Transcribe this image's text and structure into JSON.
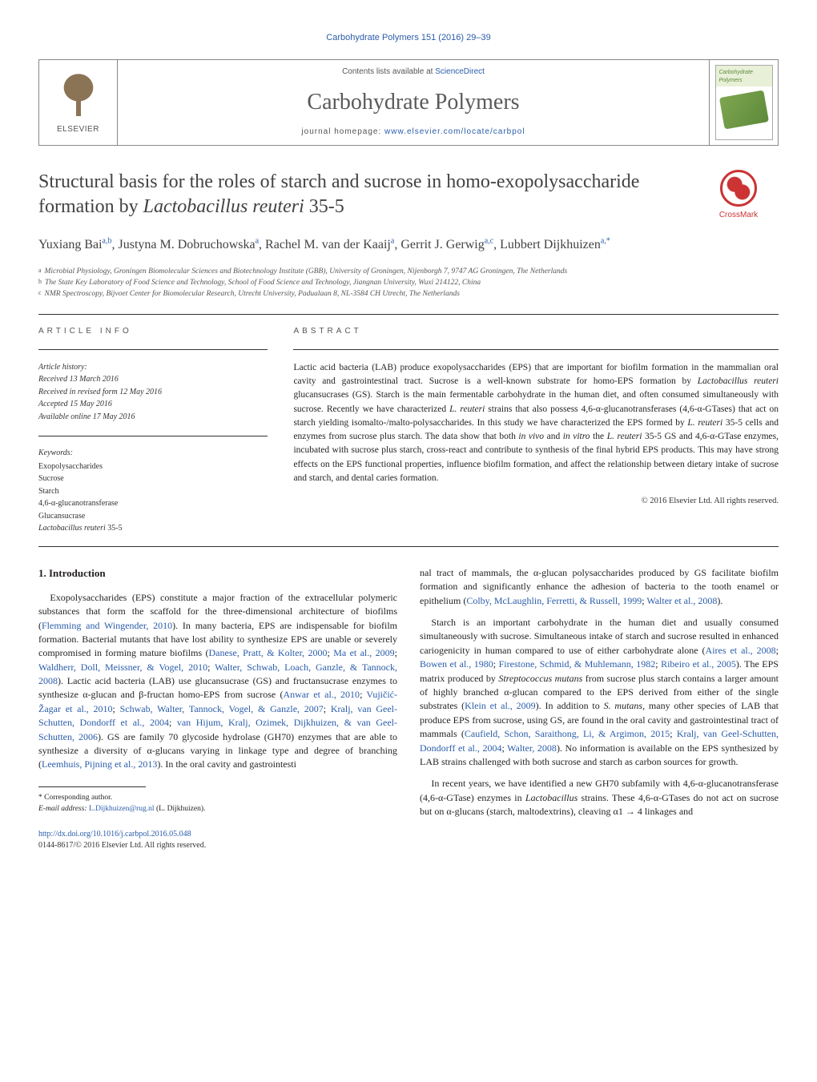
{
  "journal_ref": {
    "text": "Carbohydrate Polymers 151 (2016) 29–39",
    "link_text": "Carbohydrate Polymers 151 (2016) 29–39"
  },
  "header": {
    "elsevier": "ELSEVIER",
    "contents_prefix": "Contents lists available at ",
    "contents_link": "ScienceDirect",
    "journal_title": "Carbohydrate Polymers",
    "homepage_prefix": "journal homepage: ",
    "homepage_link": "www.elsevier.com/locate/carbpol",
    "cover_label": "Carbohydrate Polymers"
  },
  "crossmark": "CrossMark",
  "title_html": "Structural basis for the roles of starch and sucrose in homo-exopolysaccharide formation by <em>Lactobacillus reuteri</em> 35-5",
  "authors_html": "Yuxiang Bai<sup>a,b</sup>, Justyna M. Dobruchowska<sup>a</sup>, Rachel M. van der Kaaij<sup>a</sup>, Gerrit J. Gerwig<sup>a,c</sup>, Lubbert Dijkhuizen<sup>a,</sup><sup>*</sup>",
  "affiliations": [
    {
      "sup": "a",
      "text": "Microbial Physiology, Groningen Biomolecular Sciences and Biotechnology Institute (GBB), University of Groningen, Nijenborgh 7, 9747 AG Groningen, The Netherlands"
    },
    {
      "sup": "b",
      "text": "The State Key Laboratory of Food Science and Technology, School of Food Science and Technology, Jiangnan University, Wuxi 214122, China"
    },
    {
      "sup": "c",
      "text": "NMR Spectroscopy, Bijvoet Center for Biomolecular Research, Utrecht University, Padualaan 8, NL-3584 CH Utrecht, The Netherlands"
    }
  ],
  "info": {
    "head": "ARTICLE INFO",
    "history_label": "Article history:",
    "history": [
      "Received 13 March 2016",
      "Received in revised form 12 May 2016",
      "Accepted 15 May 2016",
      "Available online 17 May 2016"
    ],
    "keywords_label": "Keywords:",
    "keywords": [
      "Exopolysaccharides",
      "Sucrose",
      "Starch",
      "4,6-α-glucanotransferase",
      "Glucansucrase",
      "Lactobacillus reuteri 35-5"
    ]
  },
  "abstract": {
    "head": "ABSTRACT",
    "text_html": "Lactic acid bacteria (LAB) produce exopolysaccharides (EPS) that are important for biofilm formation in the mammalian oral cavity and gastrointestinal tract. Sucrose is a well-known substrate for homo-EPS formation by <em>Lactobacillus reuteri</em> glucansucrases (GS). Starch is the main fermentable carbohydrate in the human diet, and often consumed simultaneously with sucrose. Recently we have characterized <em>L. reuteri</em> strains that also possess 4,6-α-glucanotransferases (4,6-α-GTases) that act on starch yielding isomalto-/malto-polysaccharides. In this study we have characterized the EPS formed by <em>L. reuteri</em> 35-5 cells and enzymes from sucrose plus starch. The data show that both <em>in vivo</em> and <em>in vitro</em> the <em>L. reuteri</em> 35-5 GS and 4,6-α-GTase enzymes, incubated with sucrose plus starch, cross-react and contribute to synthesis of the final hybrid EPS products. This may have strong effects on the EPS functional properties, influence biofilm formation, and affect the relationship between dietary intake of sucrose and starch, and dental caries formation.",
    "copyright": "© 2016 Elsevier Ltd. All rights reserved."
  },
  "body": {
    "heading": "1. Introduction",
    "p1_html": "Exopolysaccharides (EPS) constitute a major fraction of the extracellular polymeric substances that form the scaffold for the three-dimensional architecture of biofilms (<a href=\"#\">Flemming and Wingender, 2010</a>). In many bacteria, EPS are indispensable for biofilm formation. Bacterial mutants that have lost ability to synthesize EPS are unable or severely compromised in forming mature biofilms (<a href=\"#\">Danese, Pratt, &amp; Kolter, 2000</a>; <a href=\"#\">Ma et al., 2009</a>; <a href=\"#\">Waldherr, Doll, Meissner, &amp; Vogel, 2010</a>; <a href=\"#\">Walter, Schwab, Loach, Ganzle, &amp; Tannock, 2008</a>). Lactic acid bacteria (LAB) use glucansucrase (GS) and fructansucrase enzymes to synthesize α-glucan and β-fructan homo-EPS from sucrose (<a href=\"#\">Anwar et al., 2010</a>; <a href=\"#\">Vujičić-Žagar et al., 2010</a>; <a href=\"#\">Schwab, Walter, Tannock, Vogel, &amp; Ganzle, 2007</a>; <a href=\"#\">Kralj, van Geel-Schutten, Dondorff et al., 2004</a>; <a href=\"#\">van Hijum, Kralj, Ozimek, Dijkhuizen, &amp; van Geel-Schutten, 2006</a>). GS are family 70 glycoside hydrolase (GH70) enzymes that are able to synthesize a diversity of α-glucans varying in linkage type and degree of branching (<a href=\"#\">Leemhuis, Pijning et al., 2013</a>). In the oral cavity and gastrointesti",
    "p1b_html": "nal tract of mammals, the α-glucan polysaccharides produced by GS facilitate biofilm formation and significantly enhance the adhesion of bacteria to the tooth enamel or epithelium (<a href=\"#\">Colby, McLaughlin, Ferretti, &amp; Russell, 1999</a>; <a href=\"#\">Walter et al., 2008</a>).",
    "p2_html": "Starch is an important carbohydrate in the human diet and usually consumed simultaneously with sucrose. Simultaneous intake of starch and sucrose resulted in enhanced cariogenicity in human compared to use of either carbohydrate alone (<a href=\"#\">Aires et al., 2008</a>; <a href=\"#\">Bowen et al., 1980</a>; <a href=\"#\">Firestone, Schmid, &amp; Muhlemann, 1982</a>; <a href=\"#\">Ribeiro et al., 2005</a>). The EPS matrix produced by <em>Streptococcus mutans</em> from sucrose plus starch contains a larger amount of highly branched α-glucan compared to the EPS derived from either of the single substrates (<a href=\"#\">Klein et al., 2009</a>). In addition to <em>S. mutans</em>, many other species of LAB that produce EPS from sucrose, using GS, are found in the oral cavity and gastrointestinal tract of mammals (<a href=\"#\">Caufield, Schon, Saraithong, Li, &amp; Argimon, 2015</a>; <a href=\"#\">Kralj, van Geel-Schutten, Dondorff et al., 2004</a>; <a href=\"#\">Walter, 2008</a>). No information is available on the EPS synthesized by LAB strains challenged with both sucrose and starch as carbon sources for growth.",
    "p3_html": "In recent years, we have identified a new GH70 subfamily with 4,6-α-glucanotransferase (4,6-α-GTase) enzymes in <em>Lactobacillus</em> strains. These 4,6-α-GTases do not act on sucrose but on α-glucans (starch, maltodextrins), cleaving α1 → 4 linkages and"
  },
  "footnotes": {
    "corr": "* Corresponding author.",
    "email_label": "E-mail address: ",
    "email": "L.Dijkhuizen@rug.nl",
    "email_paren": " (L. Dijkhuizen)."
  },
  "doi": {
    "link": "http://dx.doi.org/10.1016/j.carbpol.2016.05.048",
    "issn": "0144-8617/© 2016 Elsevier Ltd. All rights reserved."
  },
  "colors": {
    "link": "#2a5caa",
    "text": "#231f20",
    "muted": "#555555",
    "rule": "#333333",
    "crossmark": "#cc3333"
  }
}
